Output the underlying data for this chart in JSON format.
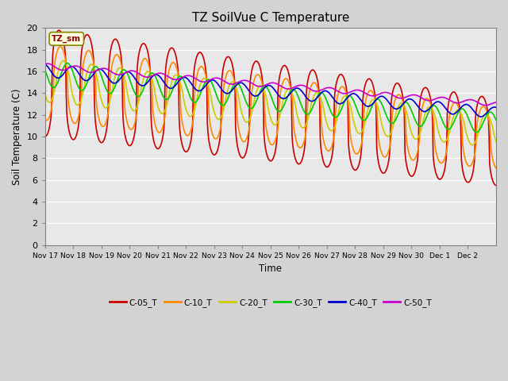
{
  "title": "TZ SoilVue C Temperature",
  "ylabel": "Soil Temperature (C)",
  "xlabel": "Time",
  "annotation": "TZ_sm",
  "ylim": [
    0,
    20
  ],
  "plot_bg_color": "#e8e8e8",
  "fig_bg_color": "#d3d3d3",
  "x_tick_labels": [
    "Nov 17",
    "Nov 18",
    "Nov 19",
    "Nov 20",
    "Nov 21",
    "Nov 22",
    "Nov 23",
    "Nov 24",
    "Nov 25",
    "Nov 26",
    "Nov 27",
    "Nov 28",
    "Nov 29",
    "Nov 30",
    "Dec 1",
    "Dec 2"
  ],
  "colors": {
    "C05_T": "#cc0000",
    "C10_T": "#ff8800",
    "C20_T": "#cccc00",
    "C30_T": "#00cc00",
    "C40_T": "#0000cc",
    "C50_T": "#cc00cc"
  },
  "legend_labels": [
    "C-05_T",
    "C-10_T",
    "C-20_T",
    "C-30_T",
    "C-40_T",
    "C-50_T"
  ]
}
